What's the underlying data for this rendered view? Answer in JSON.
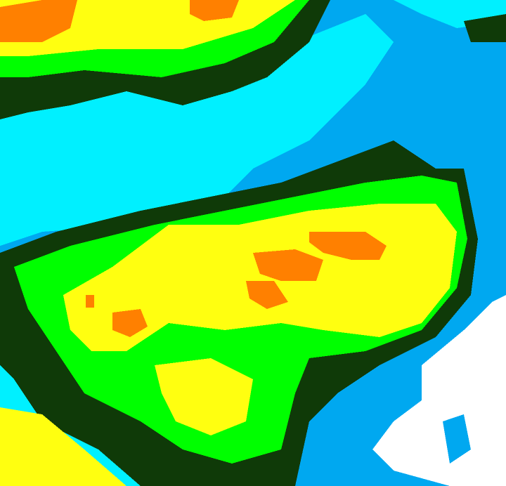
{
  "image": {
    "type": "color-enhanced cloud-top imagery",
    "palette": {
      "background_blue": "#00a8f0",
      "cyan": "#00f0ff",
      "dark_green": "#0f3a08",
      "green": "#00ff00",
      "yellow": "#ffff10",
      "orange": "#ff8000",
      "white": "#ffffff"
    }
  }
}
